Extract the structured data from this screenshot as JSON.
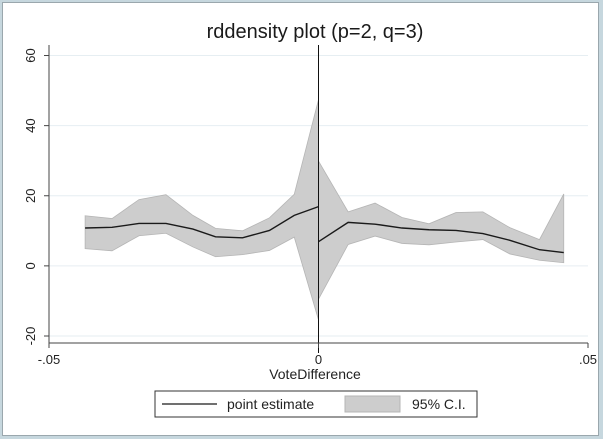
{
  "chart_data": {
    "type": "line",
    "title": "rddensity plot (p=2, q=3)",
    "xlabel": "VoteDifference",
    "ylabel": "",
    "xlim": [
      -0.05,
      0.05
    ],
    "ylim": [
      -22,
      63
    ],
    "x_ticks": [
      -0.05,
      0,
      0.05
    ],
    "x_tick_labels": [
      "-.05",
      "0",
      ".05"
    ],
    "y_ticks": [
      -20,
      0,
      20,
      40,
      60
    ],
    "y_tick_labels": [
      "-20",
      "0",
      "20",
      "40",
      "60"
    ],
    "grid": true,
    "cutoff": 0,
    "legend_position": "bottom",
    "series": [
      {
        "name": "point estimate",
        "segments": [
          [
            {
              "x": -0.0433,
              "y": 10.8
            },
            {
              "x": -0.0383,
              "y": 11.0
            },
            {
              "x": -0.0333,
              "y": 12.1
            },
            {
              "x": -0.0283,
              "y": 12.1
            },
            {
              "x": -0.0233,
              "y": 10.5
            },
            {
              "x": -0.0191,
              "y": 8.3
            },
            {
              "x": -0.0141,
              "y": 8.0
            },
            {
              "x": -0.0091,
              "y": 10.1
            },
            {
              "x": -0.0045,
              "y": 14.4
            },
            {
              "x": 0.0,
              "y": 16.9
            }
          ],
          [
            {
              "x": 0.0,
              "y": 6.9
            },
            {
              "x": 0.0055,
              "y": 12.4
            },
            {
              "x": 0.0105,
              "y": 11.9
            },
            {
              "x": 0.0155,
              "y": 10.8
            },
            {
              "x": 0.0205,
              "y": 10.3
            },
            {
              "x": 0.0255,
              "y": 10.1
            },
            {
              "x": 0.0305,
              "y": 9.2
            },
            {
              "x": 0.0355,
              "y": 7.3
            },
            {
              "x": 0.041,
              "y": 4.6
            },
            {
              "x": 0.0455,
              "y": 3.8
            }
          ]
        ]
      },
      {
        "name": "95% C.I.",
        "segments": [
          [
            {
              "x": -0.0433,
              "lo": 4.9,
              "hi": 14.3
            },
            {
              "x": -0.0383,
              "lo": 4.3,
              "hi": 13.5
            },
            {
              "x": -0.0333,
              "lo": 8.6,
              "hi": 18.9
            },
            {
              "x": -0.0283,
              "lo": 9.3,
              "hi": 20.3
            },
            {
              "x": -0.0233,
              "lo": 5.4,
              "hi": 14.4
            },
            {
              "x": -0.0191,
              "lo": 2.6,
              "hi": 10.7
            },
            {
              "x": -0.0141,
              "lo": 3.2,
              "hi": 10.0
            },
            {
              "x": -0.0091,
              "lo": 4.4,
              "hi": 13.7
            },
            {
              "x": -0.0045,
              "lo": 8.2,
              "hi": 20.4
            },
            {
              "x": 0.0,
              "lo": -15.4,
              "hi": 47.4
            }
          ],
          [
            {
              "x": 0.0,
              "lo": -9.5,
              "hi": 29.9
            },
            {
              "x": 0.0055,
              "lo": 6.1,
              "hi": 15.4
            },
            {
              "x": 0.0105,
              "lo": 8.5,
              "hi": 17.9
            },
            {
              "x": 0.0155,
              "lo": 6.4,
              "hi": 13.8
            },
            {
              "x": 0.0205,
              "lo": 6.0,
              "hi": 12.0
            },
            {
              "x": 0.0255,
              "lo": 6.8,
              "hi": 15.2
            },
            {
              "x": 0.0305,
              "lo": 7.5,
              "hi": 15.4
            },
            {
              "x": 0.0355,
              "lo": 3.4,
              "hi": 10.9
            },
            {
              "x": 0.041,
              "lo": 1.6,
              "hi": 7.5
            },
            {
              "x": 0.0455,
              "lo": 0.9,
              "hi": 20.5
            }
          ]
        ]
      }
    ],
    "colors": {
      "line": "#1a1a1a",
      "ci_fill": "#cdcdcd",
      "ci_stroke": "#b5b5b5",
      "grid": "#e6eef2",
      "axis": "#444444",
      "cutoff_line": "#111111"
    }
  }
}
